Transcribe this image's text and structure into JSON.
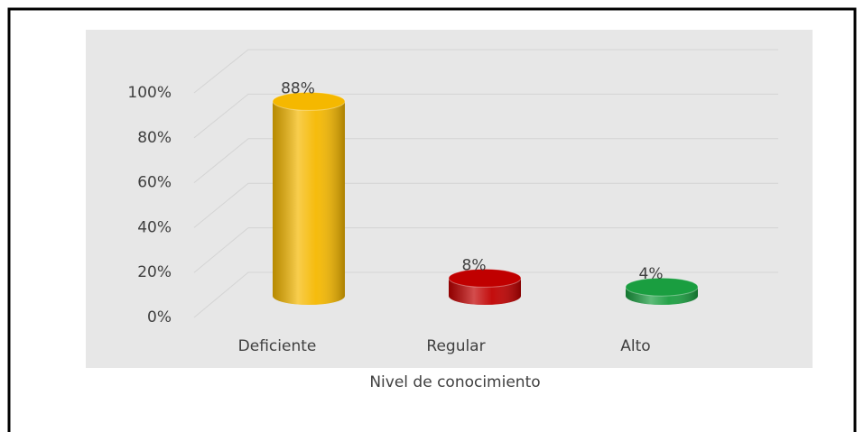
{
  "chart_data": {
    "type": "bar",
    "x_label": "Nivel de conocimiento",
    "categories": [
      "Deficiente",
      "Regular",
      "Alto"
    ],
    "values": [
      88,
      8,
      4
    ],
    "value_labels": [
      "88%",
      "8%",
      "4%"
    ],
    "colors": [
      "#f5b800",
      "#c00000",
      "#1a9e40"
    ],
    "ylim": [
      0,
      100
    ],
    "yticks": [
      {
        "value": 0,
        "label": "0%"
      },
      {
        "value": 20,
        "label": "20%"
      },
      {
        "value": 40,
        "label": "40%"
      },
      {
        "value": 60,
        "label": "60%"
      },
      {
        "value": 80,
        "label": "80%"
      },
      {
        "value": 100,
        "label": "100%"
      }
    ],
    "grid": true
  }
}
